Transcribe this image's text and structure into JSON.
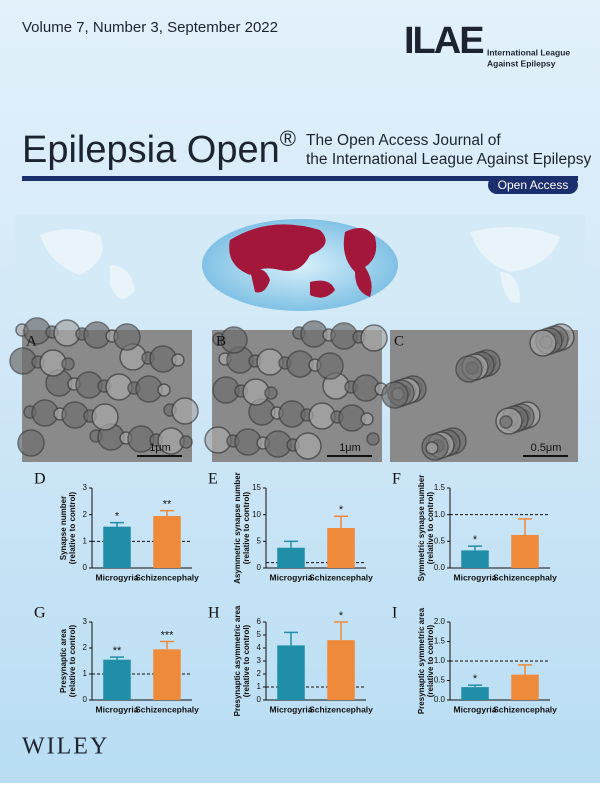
{
  "volume": "Volume 7, Number 3, September 2022",
  "logo": {
    "text": "ILAE",
    "org_lines": [
      "International League",
      "Against Epilepsy"
    ]
  },
  "title": "Epilepsia Open",
  "registered": "®",
  "tagline": [
    "The Open Access Journal of",
    "the International League Against Epilepsy"
  ],
  "badge": "Open Access",
  "panels": [
    {
      "label": "A",
      "scale": "1μm"
    },
    {
      "label": "B",
      "scale": "1μm"
    },
    {
      "label": "C",
      "scale": "0.5μm"
    }
  ],
  "publisher": "WILEY",
  "chart_data": [
    {
      "type": "bar",
      "panel": "D",
      "ylabel": [
        "Synapse number",
        "(relative to control)"
      ],
      "categories": [
        "Microgyria",
        "Schizencephaly"
      ],
      "values": [
        1.55,
        1.95
      ],
      "errors": [
        0.15,
        0.2
      ],
      "markers": [
        "*",
        "**"
      ],
      "colors": [
        "#1f8ea6",
        "#ee8a3a"
      ],
      "reference_line": 1,
      "ylim": [
        0,
        3
      ],
      "yticks": [
        0,
        1,
        2,
        3
      ]
    },
    {
      "type": "bar",
      "panel": "E",
      "ylabel": [
        "Asymmetric synapse number",
        "(relative to control)"
      ],
      "categories": [
        "Microgyria",
        "Schizencephaly"
      ],
      "values": [
        3.8,
        7.5
      ],
      "errors": [
        1.2,
        2.2
      ],
      "markers": [
        null,
        "*"
      ],
      "colors": [
        "#1f8ea6",
        "#ee8a3a"
      ],
      "reference_line": 1,
      "ylim": [
        0,
        15
      ],
      "yticks": [
        0,
        5,
        10,
        15
      ]
    },
    {
      "type": "bar",
      "panel": "F",
      "ylabel": [
        "Symmetric synapse number",
        "(relative to control)"
      ],
      "categories": [
        "Microgyria",
        "Schizencephaly"
      ],
      "values": [
        0.33,
        0.62
      ],
      "errors": [
        0.08,
        0.3
      ],
      "markers": [
        "*",
        null
      ],
      "colors": [
        "#1f8ea6",
        "#ee8a3a"
      ],
      "reference_line": 1,
      "ylim": [
        0,
        1.5
      ],
      "yticks": [
        {
          "value": 0,
          "label": "0.0"
        },
        {
          "value": 0.5,
          "label": "0.5"
        },
        {
          "value": 1,
          "label": "1.0"
        },
        {
          "value": 1.5,
          "label": "1.5"
        }
      ]
    },
    {
      "type": "bar",
      "panel": "G",
      "ylabel": [
        "Presynaptic area",
        "(relative to control)"
      ],
      "categories": [
        "Microgyria",
        "Schizencephaly"
      ],
      "values": [
        1.55,
        1.95
      ],
      "errors": [
        0.1,
        0.3
      ],
      "markers": [
        "**",
        "***"
      ],
      "colors": [
        "#1f8ea6",
        "#ee8a3a"
      ],
      "reference_line": 1,
      "ylim": [
        0,
        3
      ],
      "yticks": [
        0,
        1,
        2,
        3
      ]
    },
    {
      "type": "bar",
      "panel": "H",
      "ylabel": [
        "Presynaptic asymmetric area",
        "(relative to control)"
      ],
      "categories": [
        "Microgyria",
        "Schizencephaly"
      ],
      "values": [
        4.2,
        4.6
      ],
      "errors": [
        1.0,
        1.4
      ],
      "markers": [
        null,
        "*"
      ],
      "colors": [
        "#1f8ea6",
        "#ee8a3a"
      ],
      "reference_line": 1,
      "ylim": [
        0,
        6
      ],
      "yticks": [
        0,
        1,
        2,
        3,
        4,
        5,
        6
      ]
    },
    {
      "type": "bar",
      "panel": "I",
      "ylabel": [
        "Presynaptic symmetric area",
        "(relative to control)"
      ],
      "categories": [
        "Microgyria",
        "Schizencephaly"
      ],
      "values": [
        0.33,
        0.65
      ],
      "errors": [
        0.05,
        0.25
      ],
      "markers": [
        "*",
        null
      ],
      "colors": [
        "#1f8ea6",
        "#ee8a3a"
      ],
      "reference_line": 1,
      "ylim": [
        0,
        2
      ],
      "yticks": [
        {
          "value": 0,
          "label": "0.0"
        },
        {
          "value": 0.5,
          "label": "0.5"
        },
        {
          "value": 1,
          "label": "1.0"
        },
        {
          "value": 1.5,
          "label": "1.5"
        },
        {
          "value": 2,
          "label": "2.0"
        }
      ]
    }
  ]
}
